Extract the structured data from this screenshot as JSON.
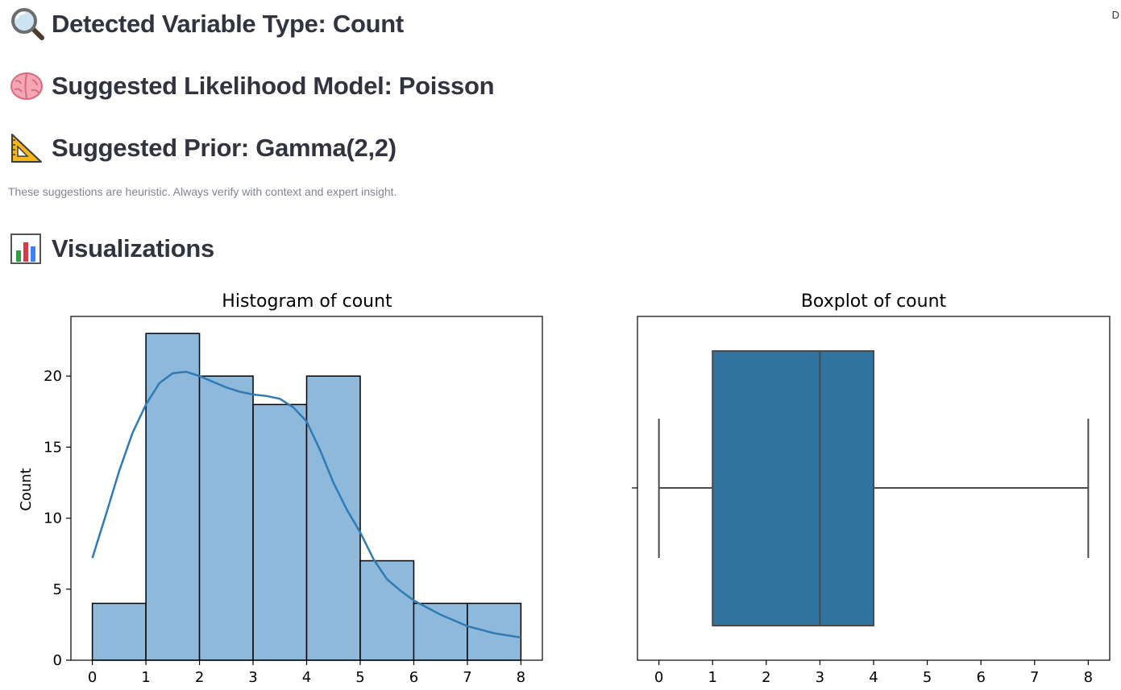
{
  "corner_label": "D",
  "headings": {
    "variable_type": "Detected Variable Type: Count",
    "likelihood": "Suggested Likelihood Model: Poisson",
    "prior": "Suggested Prior: Gamma(2,2)",
    "visualizations": "Visualizations"
  },
  "caption": "These suggestions are heuristic. Always verify with context and expert insight.",
  "icons": [
    "magnifying-glass-icon",
    "brain-icon",
    "triangular-ruler-icon",
    "bar-chart-icon"
  ],
  "colors": {
    "hist_fill": "#8fb9da",
    "kde_line": "#2e7bb6",
    "box_fill": "#3174a1",
    "box_line": "#4a4a4a"
  },
  "chart_data": [
    {
      "type": "bar",
      "title": "Histogram of count",
      "ylabel": "Count",
      "xlabel": "",
      "bin_edges": [
        0,
        1,
        2,
        3,
        4,
        5,
        6,
        7,
        8
      ],
      "values": [
        4,
        23,
        20,
        18,
        20,
        7,
        4,
        4
      ],
      "kde": {
        "x": [
          0,
          0.25,
          0.5,
          0.75,
          1,
          1.25,
          1.5,
          1.75,
          2,
          2.25,
          2.5,
          2.75,
          3,
          3.25,
          3.5,
          3.75,
          4,
          4.25,
          4.5,
          4.75,
          5,
          5.25,
          5.5,
          5.75,
          6,
          6.5,
          7,
          7.5,
          8
        ],
        "y": [
          7.2,
          10.2,
          13.3,
          16.0,
          18.0,
          19.5,
          20.2,
          20.3,
          20.0,
          19.6,
          19.2,
          18.9,
          18.7,
          18.6,
          18.4,
          17.8,
          16.8,
          14.8,
          12.5,
          10.6,
          9.0,
          7.1,
          5.7,
          4.9,
          4.2,
          3.2,
          2.4,
          1.9,
          1.6
        ]
      },
      "xlim": [
        -0.4,
        8.4
      ],
      "ylim": [
        0,
        24.2
      ],
      "x_ticks": [
        0,
        1,
        2,
        3,
        4,
        5,
        6,
        7,
        8
      ],
      "y_ticks": [
        0,
        5,
        10,
        15,
        20
      ],
      "grid": false
    },
    {
      "type": "box",
      "title": "Boxplot of count",
      "min": 0,
      "q1": 1,
      "median": 3,
      "q3": 4,
      "max": 8,
      "xlim": [
        -0.4,
        8.4
      ],
      "x_ticks": [
        0,
        1,
        2,
        3,
        4,
        5,
        6,
        7,
        8
      ],
      "grid": false
    }
  ]
}
